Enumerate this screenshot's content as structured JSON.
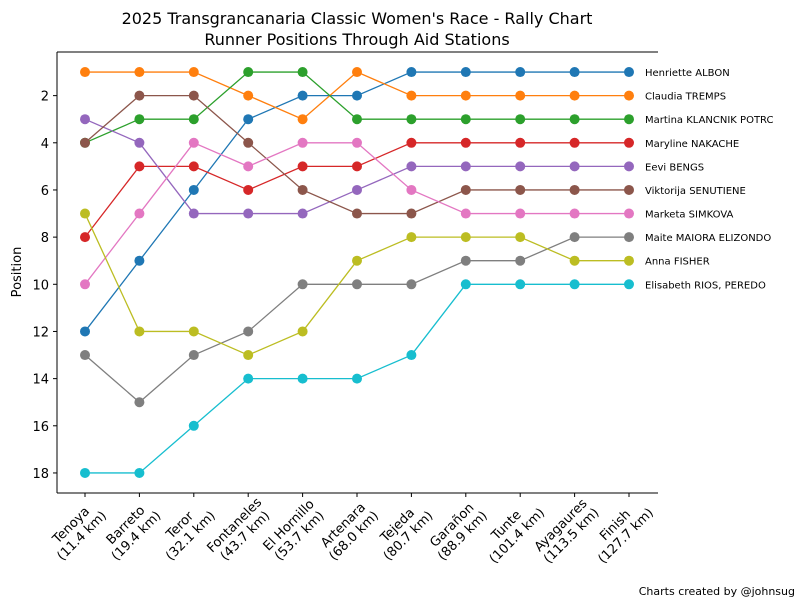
{
  "chart_data": {
    "type": "line",
    "title": "2025 Transgrancanaria Classic Women's Race - Rally Chart",
    "subtitle": "Runner Positions Through Aid Stations",
    "ylabel": "Position",
    "footer": "Charts created by @johnsug",
    "categories": [
      "Tenoya\n(11.4 km)",
      "Barreto\n(19.4 km)",
      "Teror\n(32.1 km)",
      "Fontaneles\n(43.7 km)",
      "El Hornillo\n(53.7 km)",
      "Artenara\n(68.0 km)",
      "Tejeda\n(80.7 km)",
      "Garañon\n(88.9 km)",
      "Tunte\n(101.4 km)",
      "Ayagaures\n(113.5 km)",
      "Finish\n(127.7 km)"
    ],
    "ylim": [
      18.85,
      0.15
    ],
    "yticks": [
      2,
      4,
      6,
      8,
      10,
      12,
      14,
      16,
      18
    ],
    "series": [
      {
        "name": "Henriette ALBON",
        "color": "#1f77b4",
        "values": [
          12,
          9,
          6,
          3,
          2,
          2,
          1,
          1,
          1,
          1,
          1
        ]
      },
      {
        "name": "Claudia TREMPS",
        "color": "#ff7f0e",
        "values": [
          1,
          1,
          1,
          2,
          3,
          1,
          2,
          2,
          2,
          2,
          2
        ]
      },
      {
        "name": "Martina KLANCNIK POTRC",
        "color": "#2ca02c",
        "values": [
          4,
          3,
          3,
          1,
          1,
          3,
          3,
          3,
          3,
          3,
          3
        ]
      },
      {
        "name": "Maryline NAKACHE",
        "color": "#d62728",
        "values": [
          8,
          5,
          5,
          6,
          5,
          5,
          4,
          4,
          4,
          4,
          4
        ]
      },
      {
        "name": "Eevi BENGS",
        "color": "#9467bd",
        "values": [
          3,
          4,
          7,
          7,
          7,
          6,
          5,
          5,
          5,
          5,
          5
        ]
      },
      {
        "name": "Viktorija SENUTIENE",
        "color": "#8c564b",
        "values": [
          4,
          2,
          2,
          4,
          6,
          7,
          7,
          6,
          6,
          6,
          6
        ]
      },
      {
        "name": "Marketa SIMKOVA",
        "color": "#e377c2",
        "values": [
          10,
          7,
          4,
          5,
          4,
          4,
          6,
          7,
          7,
          7,
          7
        ]
      },
      {
        "name": "Maite MAIORA ELIZONDO",
        "color": "#7f7f7f",
        "values": [
          13,
          15,
          13,
          12,
          10,
          10,
          10,
          9,
          9,
          8,
          8
        ]
      },
      {
        "name": "Anna FISHER",
        "color": "#bcbd22",
        "values": [
          7,
          12,
          12,
          13,
          12,
          9,
          8,
          8,
          8,
          9,
          9
        ]
      },
      {
        "name": "Elisabeth RIOS, PEREDO",
        "color": "#17becf",
        "values": [
          18,
          18,
          16,
          14,
          14,
          14,
          13,
          10,
          10,
          10,
          10
        ]
      }
    ]
  }
}
